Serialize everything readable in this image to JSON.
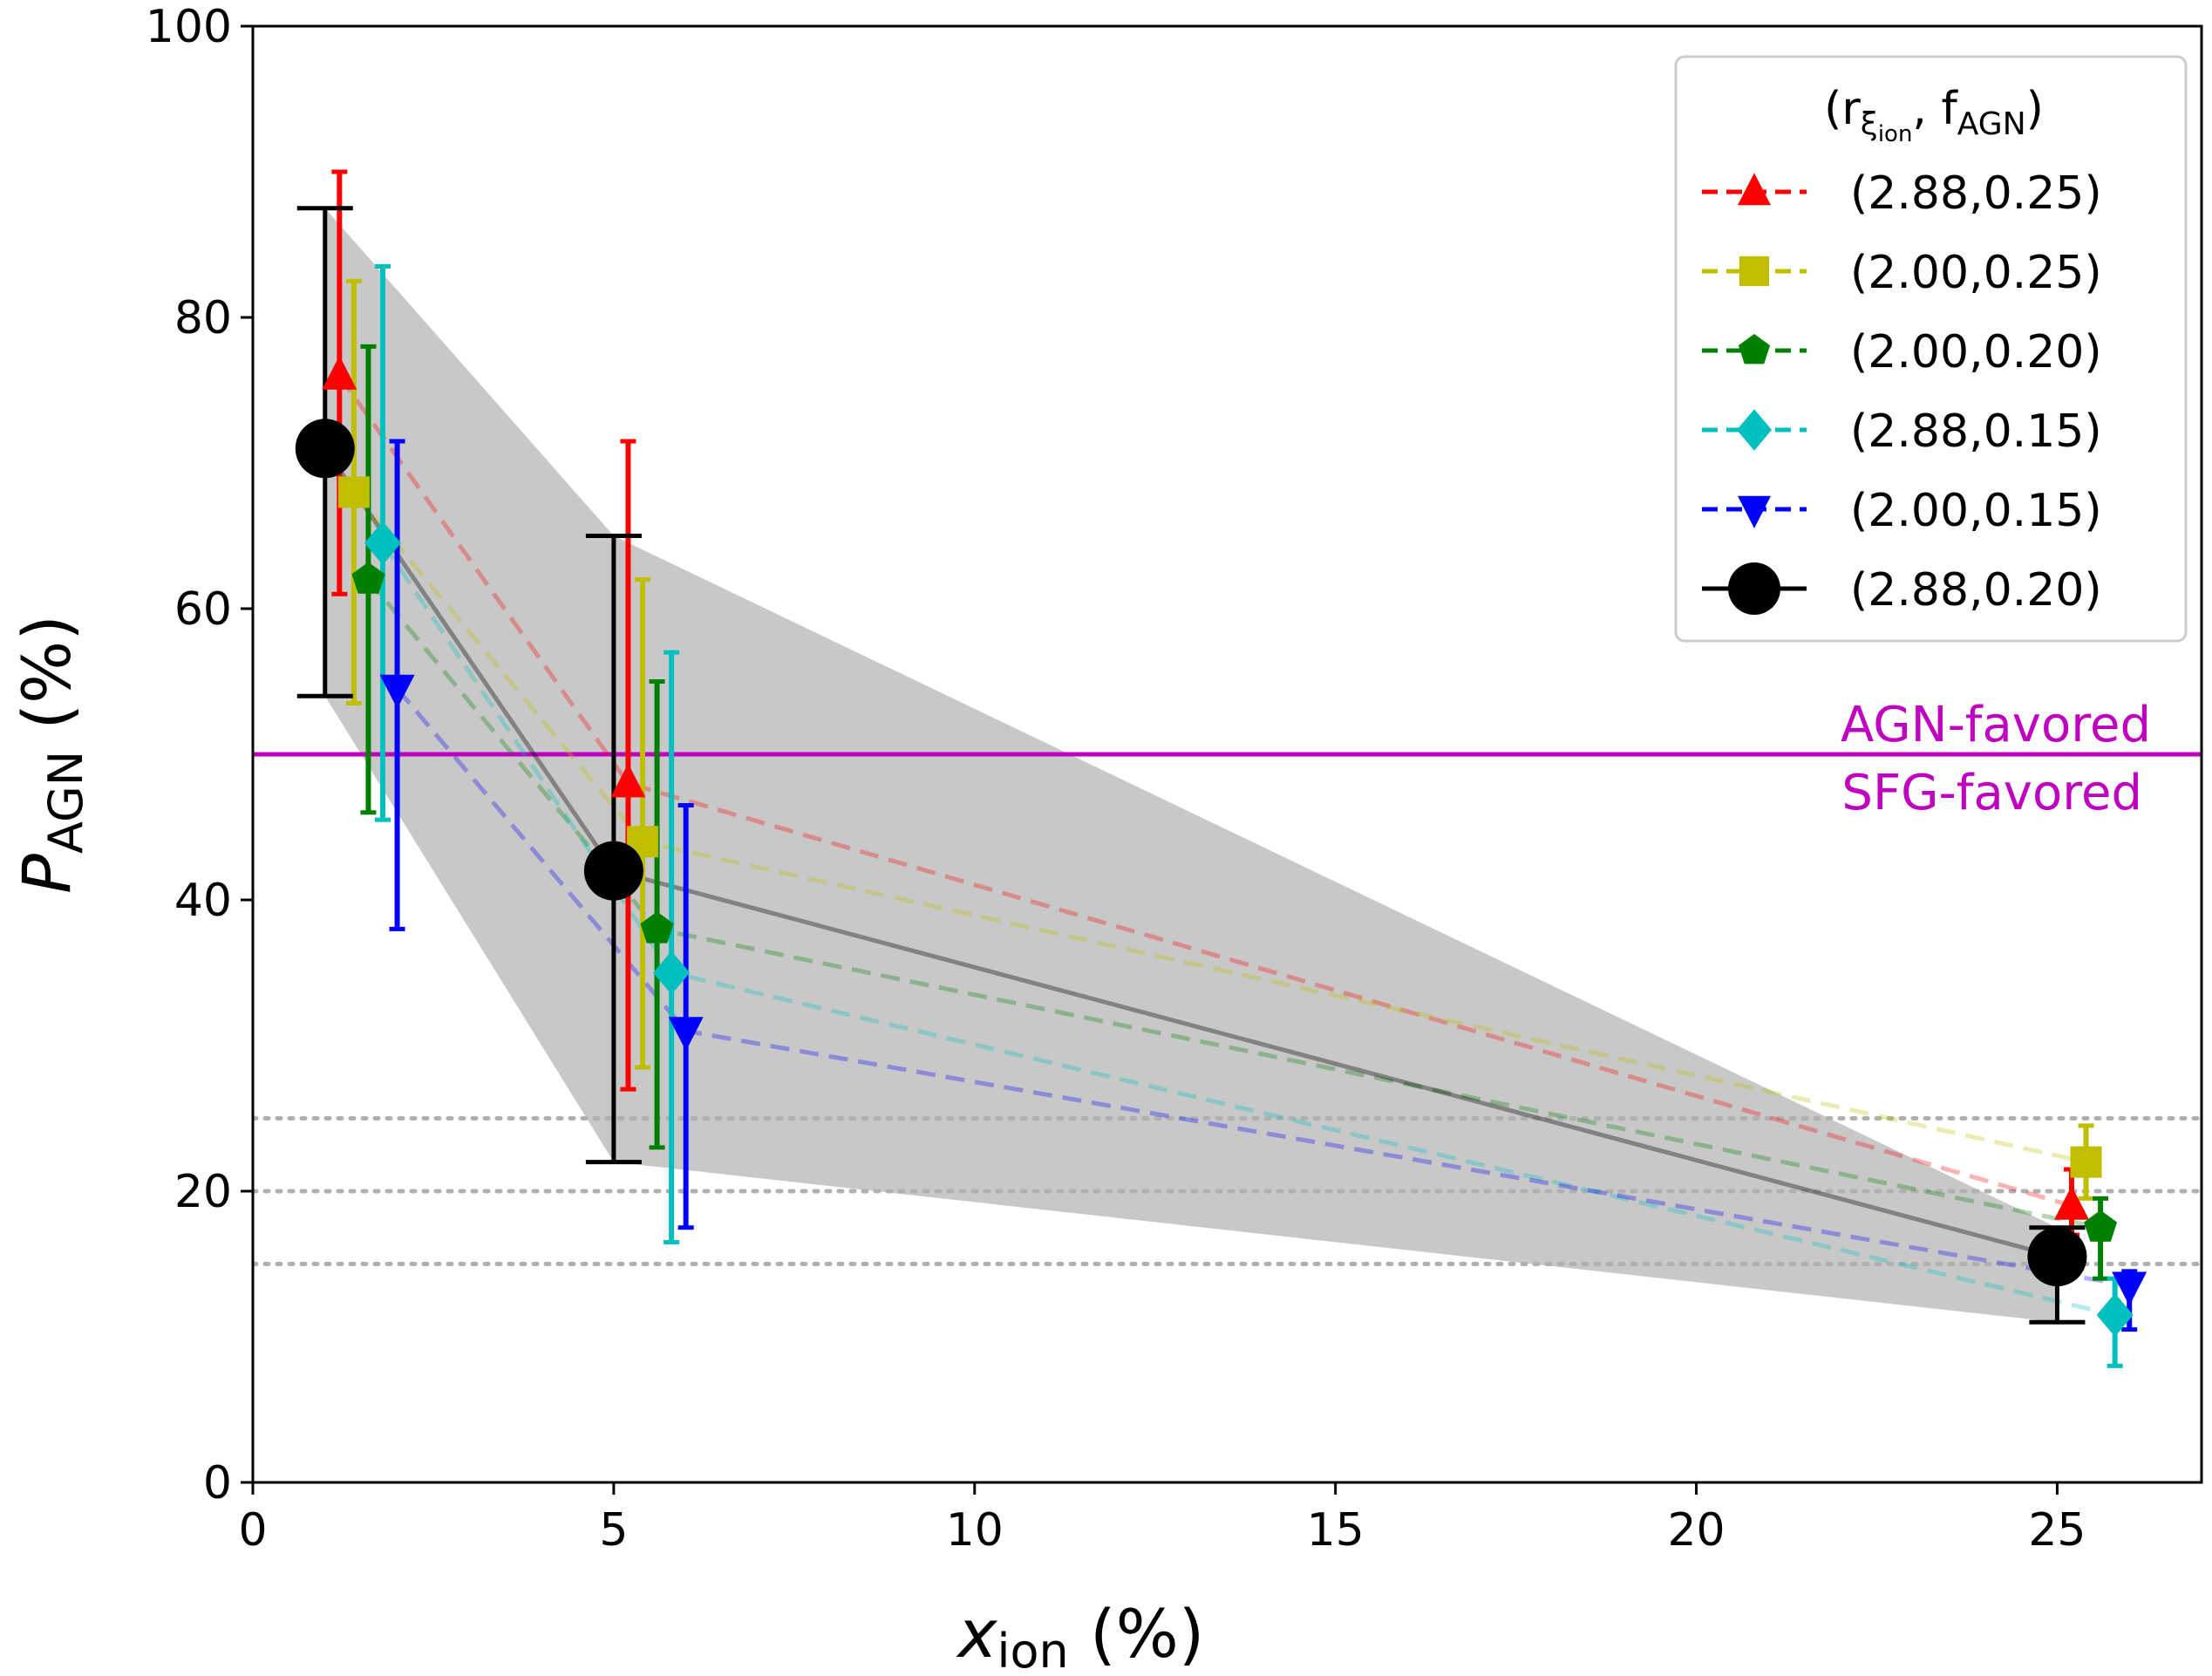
{
  "chart_data": {
    "type": "scatter",
    "title": "",
    "xlabel": {
      "main": "x",
      "sub": "ion",
      "unit": " (%)"
    },
    "ylabel": {
      "main": "P",
      "sub": "AGN",
      "unit": " (%)"
    },
    "xlim": [
      0,
      27
    ],
    "ylim": [
      0,
      100
    ],
    "xticks": [
      0,
      5,
      10,
      15,
      20,
      25
    ],
    "yticks": [
      0,
      20,
      40,
      60,
      80,
      100
    ],
    "grid": false,
    "legend": {
      "placement": "top-right",
      "title_text": "(r",
      "title_sub": "ξ",
      "title_subsub": "ion",
      "title_mid": ", f",
      "title_fsub": "AGN",
      "title_end": ")"
    },
    "band": {
      "color": "#c8c8c8",
      "upper": [
        [
          1,
          87.5
        ],
        [
          5,
          65
        ],
        [
          25,
          17.5
        ]
      ],
      "lower": [
        [
          1,
          54
        ],
        [
          5,
          22
        ],
        [
          25,
          11
        ]
      ]
    },
    "threshold": {
      "y": 50,
      "color": "#c000c0",
      "label_above": "AGN-favored",
      "label_below": "SFG-favored"
    },
    "reference_lines": [
      25,
      20,
      15
    ],
    "series": [
      {
        "name": "(2.88,0.25)",
        "color": "#ff0000",
        "marker": "triangle-up",
        "linestyle": "dashed",
        "highlight": false,
        "x": [
          1.2,
          5.2,
          25.2
        ],
        "y": [
          76,
          48,
          19
        ],
        "yerr_low": [
          61,
          27,
          17
        ],
        "yerr_high": [
          90,
          71.5,
          21.5
        ]
      },
      {
        "name": "(2.00,0.25)",
        "color": "#bfbf00",
        "marker": "square",
        "linestyle": "dashed",
        "highlight": false,
        "x": [
          1.4,
          5.4,
          25.4
        ],
        "y": [
          68,
          44,
          22
        ],
        "yerr_low": [
          53.5,
          28.5,
          19.5
        ],
        "yerr_high": [
          82.5,
          62,
          24.5
        ]
      },
      {
        "name": "(2.00,0.20)",
        "color": "#008000",
        "marker": "pentagon",
        "linestyle": "dashed",
        "highlight": false,
        "x": [
          1.6,
          5.6,
          25.6
        ],
        "y": [
          62,
          38,
          17.5
        ],
        "yerr_low": [
          46,
          23,
          14
        ],
        "yerr_high": [
          78,
          55,
          19.5
        ]
      },
      {
        "name": "(2.88,0.15)",
        "color": "#00bfbf",
        "marker": "diamond",
        "linestyle": "dashed",
        "highlight": false,
        "x": [
          1.8,
          5.8,
          25.8
        ],
        "y": [
          64.5,
          35,
          11.5
        ],
        "yerr_low": [
          45.5,
          16.5,
          8
        ],
        "yerr_high": [
          83.5,
          57,
          14
        ]
      },
      {
        "name": "(2.00,0.15)",
        "color": "#0000ff",
        "marker": "triangle-down",
        "linestyle": "dashed",
        "highlight": false,
        "x": [
          2.0,
          6.0,
          26.0
        ],
        "y": [
          54.5,
          31,
          13.5
        ],
        "yerr_low": [
          38,
          17.5,
          10.5
        ],
        "yerr_high": [
          71.5,
          46.5,
          14.5
        ]
      },
      {
        "name": "(2.88,0.20)",
        "color": "#000000",
        "marker": "circle",
        "linestyle": "solid",
        "highlight": true,
        "x": [
          1.0,
          5.0,
          25.0
        ],
        "y": [
          71,
          42,
          15.5
        ],
        "yerr_low": [
          54,
          22,
          11
        ],
        "yerr_high": [
          87.5,
          65,
          17.5
        ]
      }
    ]
  }
}
